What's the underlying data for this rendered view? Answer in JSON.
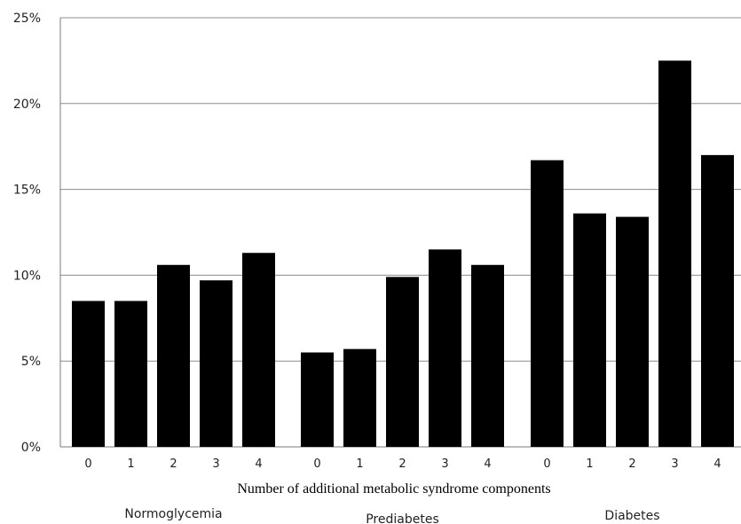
{
  "chart_data": {
    "type": "bar",
    "title": "",
    "xlabel": "Number of additional metabolic syndrome components",
    "ylabel": "",
    "ylim": [
      0,
      25
    ],
    "y_ticks": [
      "0%",
      "5%",
      "10%",
      "15%",
      "20%",
      "25%"
    ],
    "y_tick_values": [
      0,
      5,
      10,
      15,
      20,
      25
    ],
    "grid": true,
    "bar_color": "#000000",
    "groups": [
      {
        "name": "Normoglycemia",
        "categories": [
          "0",
          "1",
          "2",
          "3",
          "4"
        ],
        "values": [
          8.5,
          8.5,
          10.6,
          9.7,
          11.3
        ]
      },
      {
        "name": "Prediabetes",
        "categories": [
          "0",
          "1",
          "2",
          "3",
          "4"
        ],
        "values": [
          5.5,
          5.7,
          9.9,
          11.5,
          10.6
        ]
      },
      {
        "name": "Diabetes",
        "categories": [
          "0",
          "1",
          "2",
          "3",
          "4"
        ],
        "values": [
          16.7,
          13.6,
          13.4,
          22.5,
          17.0
        ]
      }
    ]
  }
}
